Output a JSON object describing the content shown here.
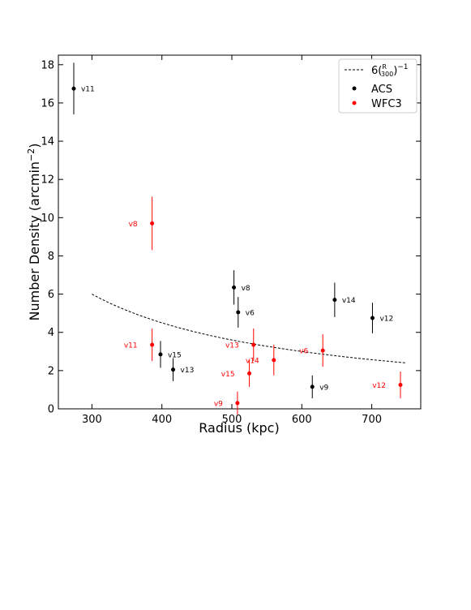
{
  "chart_data": {
    "type": "scatter",
    "xlabel": "Radius (kpc)",
    "ylabel": "Number Density (arcmin",
    "ylabel_sup": "−2",
    "ylabel_close": ")",
    "xlim": [
      252,
      770
    ],
    "ylim": [
      0,
      18.5
    ],
    "xticks": [
      300,
      400,
      500,
      600,
      700
    ],
    "yticks": [
      0,
      2,
      4,
      6,
      8,
      10,
      12,
      14,
      16,
      18
    ],
    "grid": false,
    "legend_position": "top-right",
    "legend": [
      {
        "label": "6(R/300)^-1",
        "kind": "dashed-line",
        "color": "#000000"
      },
      {
        "label": "ACS",
        "kind": "marker",
        "color": "#000000"
      },
      {
        "label": "WFC3",
        "kind": "marker",
        "color": "#ff0000"
      }
    ],
    "model_curve": {
      "amplitude": 6,
      "scale": 300,
      "exponent": -1,
      "x_range": [
        300,
        748
      ]
    },
    "series": [
      {
        "name": "ACS",
        "color": "#000000",
        "points": [
          {
            "label": "v11",
            "x": 274,
            "y": 16.75,
            "err": 1.35
          },
          {
            "label": "v15",
            "x": 398,
            "y": 2.85,
            "err": 0.7
          },
          {
            "label": "v13",
            "x": 416,
            "y": 2.05,
            "err": 0.6
          },
          {
            "label": "v8",
            "x": 503,
            "y": 6.35,
            "err": 0.9
          },
          {
            "label": "v6",
            "x": 509,
            "y": 5.05,
            "err": 0.8
          },
          {
            "label": "v9",
            "x": 615,
            "y": 1.15,
            "err": 0.6
          },
          {
            "label": "v14",
            "x": 647,
            "y": 5.7,
            "err": 0.9
          },
          {
            "label": "v12",
            "x": 701,
            "y": 4.75,
            "err": 0.8
          }
        ]
      },
      {
        "name": "WFC3",
        "color": "#ff0000",
        "points": [
          {
            "label": "v8",
            "x": 386,
            "y": 9.7,
            "err": 1.4
          },
          {
            "label": "v11",
            "x": 386,
            "y": 3.35,
            "err": 0.85
          },
          {
            "label": "v9",
            "x": 508,
            "y": 0.3,
            "err": 0.6
          },
          {
            "label": "v15",
            "x": 525,
            "y": 1.85,
            "err": 0.7
          },
          {
            "label": "v13",
            "x": 531,
            "y": 3.35,
            "err": 0.85
          },
          {
            "label": "v14",
            "x": 560,
            "y": 2.55,
            "err": 0.8
          },
          {
            "label": "v6",
            "x": 630,
            "y": 3.05,
            "err": 0.85
          },
          {
            "label": "v12",
            "x": 741,
            "y": 1.25,
            "err": 0.7
          }
        ]
      }
    ]
  }
}
